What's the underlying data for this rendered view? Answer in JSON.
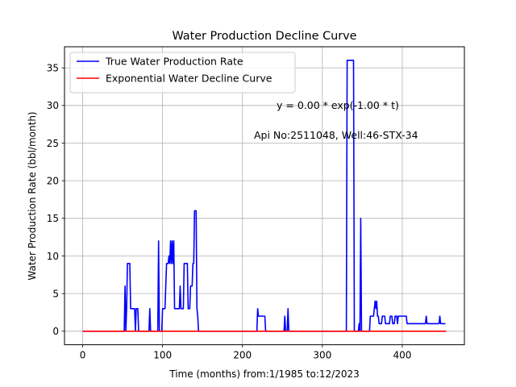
{
  "chart_data": {
    "type": "line",
    "title": "Water Production Decline Curve",
    "xlabel": "Time (months) from:1/1985 to:12/2023",
    "ylabel": "Water Production Rate (bbl/month)",
    "xlim": [
      -22.75,
      477.75
    ],
    "ylim": [
      -1.8,
      37.8
    ],
    "xticks": [
      0,
      100,
      200,
      300,
      400
    ],
    "yticks": [
      0,
      5,
      10,
      15,
      20,
      25,
      30,
      35
    ],
    "grid": true,
    "legend_position": "upper-left",
    "annotations": [
      {
        "text": "y = 0.00 * exp(-1.00 * t)",
        "x": 307,
        "y": 29.6
      },
      {
        "text": "Api No:2511048, Well:46-STX-34",
        "x": 307,
        "y": 25.7
      }
    ],
    "series": [
      {
        "name": "True Water Production Rate",
        "color": "#0000ff",
        "points": [
          [
            0,
            0
          ],
          [
            52,
            0
          ],
          [
            53,
            6
          ],
          [
            54,
            0
          ],
          [
            55,
            3
          ],
          [
            56,
            9
          ],
          [
            59,
            9
          ],
          [
            60,
            3
          ],
          [
            65,
            3
          ],
          [
            66,
            0
          ],
          [
            67,
            3
          ],
          [
            69,
            3
          ],
          [
            70,
            0
          ],
          [
            83,
            0
          ],
          [
            84,
            3
          ],
          [
            85,
            0
          ],
          [
            94,
            0
          ],
          [
            95,
            12
          ],
          [
            96,
            0
          ],
          [
            99,
            0
          ],
          [
            100,
            3
          ],
          [
            103,
            3
          ],
          [
            104,
            6
          ],
          [
            105,
            9
          ],
          [
            107,
            9
          ],
          [
            108,
            10
          ],
          [
            109,
            9
          ],
          [
            110,
            12
          ],
          [
            111,
            9
          ],
          [
            112,
            12
          ],
          [
            113,
            9
          ],
          [
            114,
            12
          ],
          [
            115,
            3
          ],
          [
            121,
            3
          ],
          [
            122,
            6
          ],
          [
            123,
            3
          ],
          [
            126,
            3
          ],
          [
            127,
            9
          ],
          [
            131,
            9
          ],
          [
            132,
            3
          ],
          [
            134,
            3
          ],
          [
            135,
            6
          ],
          [
            137,
            6
          ],
          [
            138,
            9
          ],
          [
            139,
            9
          ],
          [
            140,
            16
          ],
          [
            142,
            16
          ],
          [
            143,
            3
          ],
          [
            144,
            2
          ],
          [
            145,
            0
          ],
          [
            218,
            0
          ],
          [
            219,
            3
          ],
          [
            220,
            2
          ],
          [
            228,
            2
          ],
          [
            229,
            0
          ],
          [
            252,
            0
          ],
          [
            253,
            2
          ],
          [
            254,
            0
          ],
          [
            256,
            0
          ],
          [
            257,
            3
          ],
          [
            258,
            0
          ],
          [
            330,
            0
          ],
          [
            331,
            36
          ],
          [
            339,
            36
          ],
          [
            340,
            0
          ],
          [
            345,
            0
          ],
          [
            346,
            1
          ],
          [
            347,
            0
          ],
          [
            348,
            15
          ],
          [
            349,
            0
          ],
          [
            359,
            0
          ],
          [
            360,
            2
          ],
          [
            364,
            2
          ],
          [
            365,
            3
          ],
          [
            366,
            4
          ],
          [
            367,
            3
          ],
          [
            368,
            4
          ],
          [
            369,
            2
          ],
          [
            370,
            2
          ],
          [
            371,
            1
          ],
          [
            374,
            1
          ],
          [
            375,
            2
          ],
          [
            378,
            2
          ],
          [
            379,
            1
          ],
          [
            384,
            1
          ],
          [
            385,
            2
          ],
          [
            387,
            2
          ],
          [
            388,
            1
          ],
          [
            390,
            1
          ],
          [
            391,
            2
          ],
          [
            393,
            2
          ],
          [
            394,
            1
          ],
          [
            395,
            2
          ],
          [
            405,
            2
          ],
          [
            406,
            1
          ],
          [
            429,
            1
          ],
          [
            430,
            2
          ],
          [
            431,
            1
          ],
          [
            446,
            1
          ],
          [
            447,
            2
          ],
          [
            448,
            1
          ],
          [
            454,
            1
          ]
        ]
      },
      {
        "name": "Exponential Water Decline Curve",
        "color": "#ff0000",
        "points": [
          [
            0,
            0
          ],
          [
            455,
            0
          ]
        ]
      }
    ]
  }
}
